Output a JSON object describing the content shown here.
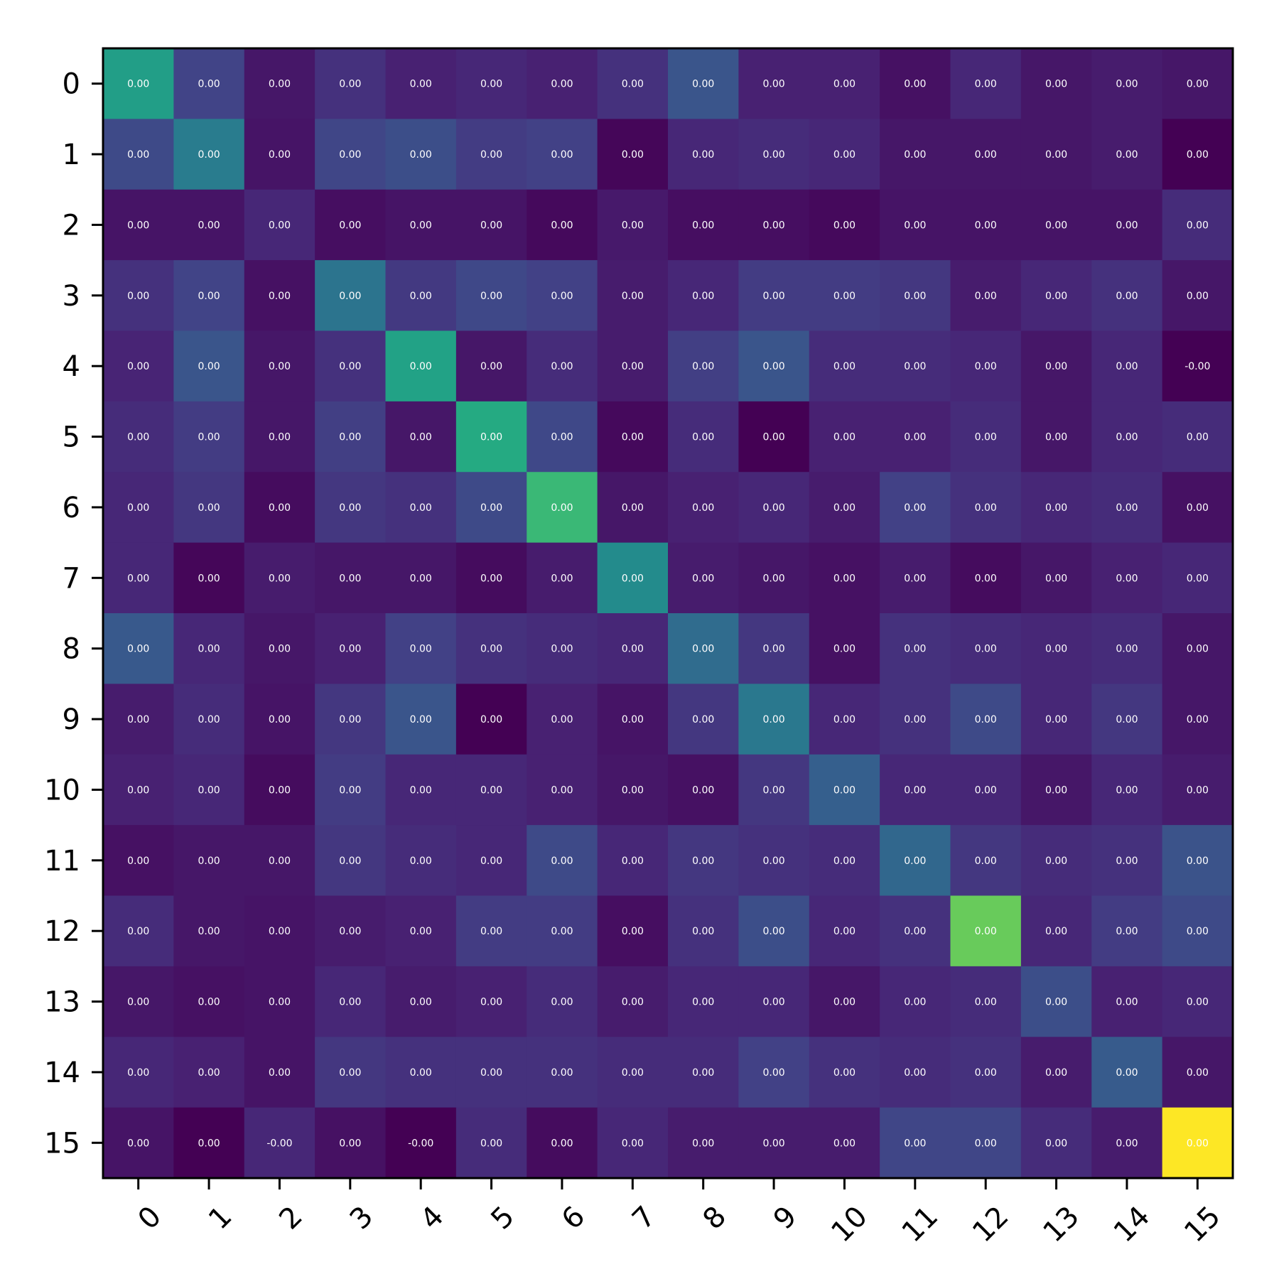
{
  "chart_data": {
    "type": "heatmap",
    "title": "",
    "xlabel": "",
    "ylabel": "",
    "colormap": "viridis",
    "value_format": "0.00",
    "x_categories": [
      "0",
      "1",
      "2",
      "3",
      "4",
      "5",
      "6",
      "7",
      "8",
      "9",
      "10",
      "11",
      "12",
      "13",
      "14",
      "15"
    ],
    "y_categories": [
      "0",
      "1",
      "2",
      "3",
      "4",
      "5",
      "6",
      "7",
      "8",
      "9",
      "10",
      "11",
      "12",
      "13",
      "14",
      "15"
    ],
    "cell_labels": [
      [
        "0.00",
        "0.00",
        "0.00",
        "0.00",
        "0.00",
        "0.00",
        "0.00",
        "0.00",
        "0.00",
        "0.00",
        "0.00",
        "0.00",
        "0.00",
        "0.00",
        "0.00",
        "0.00"
      ],
      [
        "0.00",
        "0.00",
        "0.00",
        "0.00",
        "0.00",
        "0.00",
        "0.00",
        "0.00",
        "0.00",
        "0.00",
        "0.00",
        "0.00",
        "0.00",
        "0.00",
        "0.00",
        "0.00"
      ],
      [
        "0.00",
        "0.00",
        "0.00",
        "0.00",
        "0.00",
        "0.00",
        "0.00",
        "0.00",
        "0.00",
        "0.00",
        "0.00",
        "0.00",
        "0.00",
        "0.00",
        "0.00",
        "0.00"
      ],
      [
        "0.00",
        "0.00",
        "0.00",
        "0.00",
        "0.00",
        "0.00",
        "0.00",
        "0.00",
        "0.00",
        "0.00",
        "0.00",
        "0.00",
        "0.00",
        "0.00",
        "0.00",
        "0.00"
      ],
      [
        "0.00",
        "0.00",
        "0.00",
        "0.00",
        "0.00",
        "0.00",
        "0.00",
        "0.00",
        "0.00",
        "0.00",
        "0.00",
        "0.00",
        "0.00",
        "0.00",
        "0.00",
        "-0.00"
      ],
      [
        "0.00",
        "0.00",
        "0.00",
        "0.00",
        "0.00",
        "0.00",
        "0.00",
        "0.00",
        "0.00",
        "0.00",
        "0.00",
        "0.00",
        "0.00",
        "0.00",
        "0.00",
        "0.00"
      ],
      [
        "0.00",
        "0.00",
        "0.00",
        "0.00",
        "0.00",
        "0.00",
        "0.00",
        "0.00",
        "0.00",
        "0.00",
        "0.00",
        "0.00",
        "0.00",
        "0.00",
        "0.00",
        "0.00"
      ],
      [
        "0.00",
        "0.00",
        "0.00",
        "0.00",
        "0.00",
        "0.00",
        "0.00",
        "0.00",
        "0.00",
        "0.00",
        "0.00",
        "0.00",
        "0.00",
        "0.00",
        "0.00",
        "0.00"
      ],
      [
        "0.00",
        "0.00",
        "0.00",
        "0.00",
        "0.00",
        "0.00",
        "0.00",
        "0.00",
        "0.00",
        "0.00",
        "0.00",
        "0.00",
        "0.00",
        "0.00",
        "0.00",
        "0.00"
      ],
      [
        "0.00",
        "0.00",
        "0.00",
        "0.00",
        "0.00",
        "0.00",
        "0.00",
        "0.00",
        "0.00",
        "0.00",
        "0.00",
        "0.00",
        "0.00",
        "0.00",
        "0.00",
        "0.00"
      ],
      [
        "0.00",
        "0.00",
        "0.00",
        "0.00",
        "0.00",
        "0.00",
        "0.00",
        "0.00",
        "0.00",
        "0.00",
        "0.00",
        "0.00",
        "0.00",
        "0.00",
        "0.00",
        "0.00"
      ],
      [
        "0.00",
        "0.00",
        "0.00",
        "0.00",
        "0.00",
        "0.00",
        "0.00",
        "0.00",
        "0.00",
        "0.00",
        "0.00",
        "0.00",
        "0.00",
        "0.00",
        "0.00",
        "0.00"
      ],
      [
        "0.00",
        "0.00",
        "0.00",
        "0.00",
        "0.00",
        "0.00",
        "0.00",
        "0.00",
        "0.00",
        "0.00",
        "0.00",
        "0.00",
        "0.00",
        "0.00",
        "0.00",
        "0.00"
      ],
      [
        "0.00",
        "0.00",
        "0.00",
        "0.00",
        "0.00",
        "0.00",
        "0.00",
        "0.00",
        "0.00",
        "0.00",
        "0.00",
        "0.00",
        "0.00",
        "0.00",
        "0.00",
        "0.00"
      ],
      [
        "0.00",
        "0.00",
        "0.00",
        "0.00",
        "0.00",
        "0.00",
        "0.00",
        "0.00",
        "0.00",
        "0.00",
        "0.00",
        "0.00",
        "0.00",
        "0.00",
        "0.00",
        "0.00"
      ],
      [
        "0.00",
        "0.00",
        "-0.00",
        "0.00",
        "-0.00",
        "0.00",
        "0.00",
        "0.00",
        "0.00",
        "0.00",
        "0.00",
        "0.00",
        "0.00",
        "0.00",
        "0.00",
        "0.00"
      ]
    ],
    "intensity": [
      [
        0.7,
        0.25,
        0.08,
        0.18,
        0.12,
        0.14,
        0.12,
        0.18,
        0.33,
        0.12,
        0.12,
        0.06,
        0.14,
        0.08,
        0.1,
        0.08
      ],
      [
        0.28,
        0.52,
        0.07,
        0.26,
        0.3,
        0.22,
        0.24,
        0.02,
        0.14,
        0.16,
        0.14,
        0.08,
        0.08,
        0.08,
        0.1,
        0.0
      ],
      [
        0.07,
        0.07,
        0.14,
        0.05,
        0.07,
        0.07,
        0.03,
        0.09,
        0.05,
        0.05,
        0.03,
        0.07,
        0.07,
        0.07,
        0.07,
        0.16
      ],
      [
        0.18,
        0.25,
        0.06,
        0.48,
        0.21,
        0.27,
        0.24,
        0.1,
        0.14,
        0.22,
        0.22,
        0.2,
        0.1,
        0.14,
        0.18,
        0.08
      ],
      [
        0.13,
        0.33,
        0.08,
        0.18,
        0.72,
        0.08,
        0.16,
        0.1,
        0.23,
        0.33,
        0.16,
        0.16,
        0.14,
        0.08,
        0.14,
        0.0
      ],
      [
        0.16,
        0.22,
        0.08,
        0.23,
        0.08,
        0.76,
        0.27,
        0.03,
        0.16,
        0.0,
        0.12,
        0.12,
        0.16,
        0.08,
        0.14,
        0.16
      ],
      [
        0.14,
        0.2,
        0.04,
        0.2,
        0.18,
        0.28,
        0.84,
        0.08,
        0.12,
        0.14,
        0.1,
        0.24,
        0.18,
        0.14,
        0.16,
        0.06
      ],
      [
        0.14,
        0.02,
        0.1,
        0.08,
        0.08,
        0.04,
        0.1,
        0.6,
        0.1,
        0.08,
        0.06,
        0.1,
        0.04,
        0.08,
        0.12,
        0.14
      ],
      [
        0.35,
        0.14,
        0.08,
        0.12,
        0.24,
        0.18,
        0.16,
        0.14,
        0.44,
        0.2,
        0.06,
        0.18,
        0.16,
        0.14,
        0.16,
        0.08
      ],
      [
        0.1,
        0.16,
        0.07,
        0.2,
        0.33,
        0.0,
        0.12,
        0.07,
        0.2,
        0.5,
        0.14,
        0.18,
        0.28,
        0.14,
        0.2,
        0.08
      ],
      [
        0.12,
        0.14,
        0.04,
        0.22,
        0.14,
        0.14,
        0.12,
        0.08,
        0.06,
        0.2,
        0.38,
        0.14,
        0.14,
        0.08,
        0.14,
        0.1
      ],
      [
        0.06,
        0.08,
        0.08,
        0.2,
        0.16,
        0.14,
        0.28,
        0.14,
        0.2,
        0.18,
        0.16,
        0.42,
        0.2,
        0.16,
        0.18,
        0.32
      ],
      [
        0.16,
        0.08,
        0.07,
        0.1,
        0.12,
        0.22,
        0.22,
        0.05,
        0.18,
        0.3,
        0.14,
        0.18,
        0.92,
        0.14,
        0.22,
        0.28
      ],
      [
        0.08,
        0.06,
        0.07,
        0.14,
        0.1,
        0.12,
        0.16,
        0.1,
        0.14,
        0.14,
        0.08,
        0.14,
        0.16,
        0.3,
        0.12,
        0.14
      ],
      [
        0.14,
        0.12,
        0.07,
        0.2,
        0.18,
        0.18,
        0.18,
        0.16,
        0.16,
        0.24,
        0.18,
        0.16,
        0.18,
        0.1,
        0.36,
        0.08
      ],
      [
        0.07,
        0.0,
        0.14,
        0.06,
        0.0,
        0.16,
        0.04,
        0.14,
        0.1,
        0.1,
        0.1,
        0.26,
        0.26,
        0.16,
        0.1,
        1.0
      ]
    ]
  }
}
